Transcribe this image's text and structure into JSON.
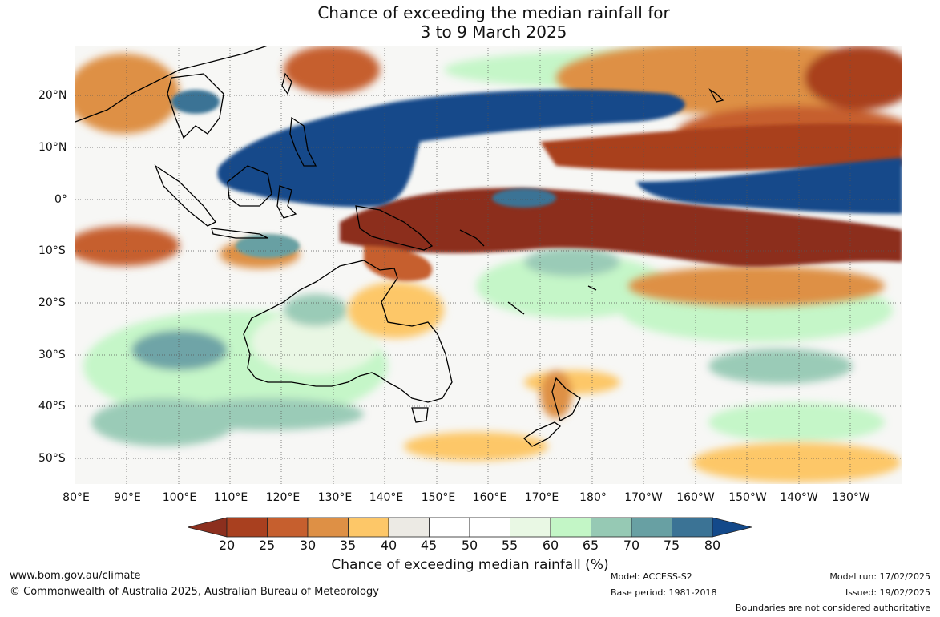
{
  "title": {
    "line1": "Chance of exceeding the median rainfall for",
    "line2": "3 to 9 March 2025"
  },
  "map": {
    "lat_labels": [
      "20°N",
      "10°N",
      "0°",
      "10°S",
      "20°S",
      "30°S",
      "40°S",
      "50°S"
    ],
    "lon_labels": [
      "80°E",
      "90°E",
      "100°E",
      "110°E",
      "120°E",
      "130°E",
      "140°E",
      "150°E",
      "160°E",
      "170°E",
      "180°",
      "170°W",
      "160°W",
      "150°W",
      "140°W",
      "130°W"
    ]
  },
  "legend": {
    "ticks": [
      "20",
      "25",
      "30",
      "35",
      "40",
      "45",
      "50",
      "55",
      "60",
      "65",
      "70",
      "75",
      "80"
    ],
    "colors": [
      "#8c2f1e",
      "#a9401f",
      "#c65f2e",
      "#de9045",
      "#fdc768",
      "#eceae4",
      "#ffffff",
      "#ffffff",
      "#e9f8e4",
      "#c3f6c6",
      "#96c9b4",
      "#68a0a3",
      "#3b7395",
      "#13498a"
    ],
    "title": "Chance of exceeding median rainfall (%)"
  },
  "footer": {
    "website": "www.bom.gov.au/climate",
    "copyright": "© Commonwealth of Australia 2025, Australian Bureau of Meteorology",
    "model": "Model: ACCESS-S2",
    "base_period": "Base period: 1981-2018",
    "model_run": "Model run: 17/02/2025",
    "issued": "Issued: 19/02/2025",
    "disclaimer": "Boundaries are not considered authoritative"
  }
}
